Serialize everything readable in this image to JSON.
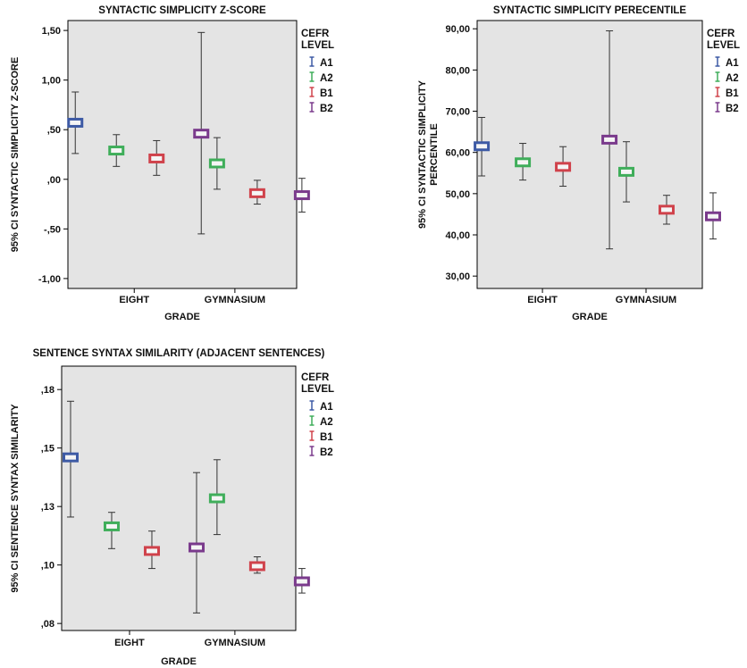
{
  "chart_data": [
    {
      "type": "errorbar",
      "title": "SYNTACTIC SIMPLICITY Z-SCORE",
      "xlabel": "GRADE",
      "ylabel": [
        "95% CI SYNTACTIC SIMPLICITY Z-SCORE"
      ],
      "categories": [
        "EIGHT",
        "GYMNASIUM"
      ],
      "ylim": [
        -1.1,
        1.6
      ],
      "yticks": [
        -1.0,
        -0.5,
        0.0,
        0.5,
        1.0,
        1.5
      ],
      "ytick_labels": [
        "-1,00",
        "-,50",
        ",00",
        ",50",
        "1,00",
        "1,50"
      ],
      "legend": {
        "title": [
          "CEFR",
          "LEVEL"
        ],
        "position": "right"
      },
      "series": [
        {
          "name": "A1",
          "color": "#3d5aa5",
          "points": [
            {
              "category": "EIGHT",
              "mean": 0.57,
              "low": 0.26,
              "high": 0.88
            }
          ]
        },
        {
          "name": "A2",
          "color": "#3fae5a",
          "points": [
            {
              "category": "EIGHT",
              "mean": 0.29,
              "low": 0.13,
              "high": 0.45
            },
            {
              "category": "GYMNASIUM",
              "mean": 0.16,
              "low": -0.1,
              "high": 0.42
            }
          ]
        },
        {
          "name": "B1",
          "color": "#d0424b",
          "points": [
            {
              "category": "EIGHT",
              "mean": 0.21,
              "low": 0.04,
              "high": 0.39
            },
            {
              "category": "GYMNASIUM",
              "mean": -0.14,
              "low": -0.25,
              "high": -0.01
            }
          ]
        },
        {
          "name": "B2",
          "color": "#7a3a8c",
          "points": [
            {
              "category": "EIGHT",
              "mean": 0.46,
              "low": -0.55,
              "high": 1.48
            },
            {
              "category": "GYMNASIUM",
              "mean": -0.16,
              "low": -0.33,
              "high": 0.01
            }
          ]
        }
      ]
    },
    {
      "type": "errorbar",
      "title": "SYNTACTIC SIMPLICITY PERECENTILE",
      "xlabel": "GRADE",
      "ylabel": [
        "95% CI SYNTACTIC SIMPLICITY",
        "PERCENTILE"
      ],
      "categories": [
        "EIGHT",
        "GYMNASIUM"
      ],
      "ylim": [
        27,
        92
      ],
      "yticks": [
        30,
        40,
        50,
        60,
        70,
        80,
        90
      ],
      "ytick_labels": [
        "30,00",
        "40,00",
        "50,00",
        "60,00",
        "70,00",
        "80,00",
        "90,00"
      ],
      "legend": {
        "title": [
          "CEFR",
          "LEVEL"
        ],
        "position": "right"
      },
      "series": [
        {
          "name": "A1",
          "color": "#3d5aa5",
          "points": [
            {
              "category": "EIGHT",
              "mean": 61.5,
              "low": 54.3,
              "high": 68.5
            }
          ]
        },
        {
          "name": "A2",
          "color": "#3fae5a",
          "points": [
            {
              "category": "EIGHT",
              "mean": 57.6,
              "low": 53.3,
              "high": 62.2
            },
            {
              "category": "GYMNASIUM",
              "mean": 55.3,
              "low": 48.0,
              "high": 62.6
            }
          ]
        },
        {
          "name": "B1",
          "color": "#d0424b",
          "points": [
            {
              "category": "EIGHT",
              "mean": 56.5,
              "low": 51.8,
              "high": 61.4
            },
            {
              "category": "GYMNASIUM",
              "mean": 46.1,
              "low": 42.6,
              "high": 49.6
            }
          ]
        },
        {
          "name": "B2",
          "color": "#7a3a8c",
          "points": [
            {
              "category": "EIGHT",
              "mean": 63.1,
              "low": 36.6,
              "high": 89.5
            },
            {
              "category": "GYMNASIUM",
              "mean": 44.5,
              "low": 39.0,
              "high": 50.2
            }
          ]
        }
      ]
    },
    {
      "type": "errorbar",
      "title": "SENTENCE SYNTAX SIMILARITY (ADJACENT SENTENCES)",
      "xlabel": "GRADE",
      "ylabel": [
        "95% CI SENTENCE SYNTAX SIMILARITY"
      ],
      "categories": [
        "EIGHT",
        "GYMNASIUM"
      ],
      "ylim": [
        0.072,
        0.185
      ],
      "yticks": [
        0.075,
        0.1,
        0.125,
        0.15,
        0.175
      ],
      "ytick_labels": [
        ",08",
        ",10",
        ",13",
        ",15",
        ",18"
      ],
      "legend": {
        "title": [
          "CEFR",
          "LEVEL"
        ],
        "position": "right"
      },
      "series": [
        {
          "name": "A1",
          "color": "#3d5aa5",
          "points": [
            {
              "category": "EIGHT",
              "mean": 0.146,
              "low": 0.1205,
              "high": 0.17
            }
          ]
        },
        {
          "name": "A2",
          "color": "#3fae5a",
          "points": [
            {
              "category": "EIGHT",
              "mean": 0.1165,
              "low": 0.107,
              "high": 0.1225
            },
            {
              "category": "GYMNASIUM",
              "mean": 0.1285,
              "low": 0.113,
              "high": 0.145
            }
          ]
        },
        {
          "name": "B1",
          "color": "#d0424b",
          "points": [
            {
              "category": "EIGHT",
              "mean": 0.106,
              "low": 0.0985,
              "high": 0.1145
            },
            {
              "category": "GYMNASIUM",
              "mean": 0.0995,
              "low": 0.0965,
              "high": 0.1035
            }
          ]
        },
        {
          "name": "B2",
          "color": "#7a3a8c",
          "points": [
            {
              "category": "EIGHT",
              "mean": 0.1075,
              "low": 0.0795,
              "high": 0.1395
            },
            {
              "category": "GYMNASIUM",
              "mean": 0.093,
              "low": 0.088,
              "high": 0.0985
            }
          ]
        }
      ]
    }
  ]
}
